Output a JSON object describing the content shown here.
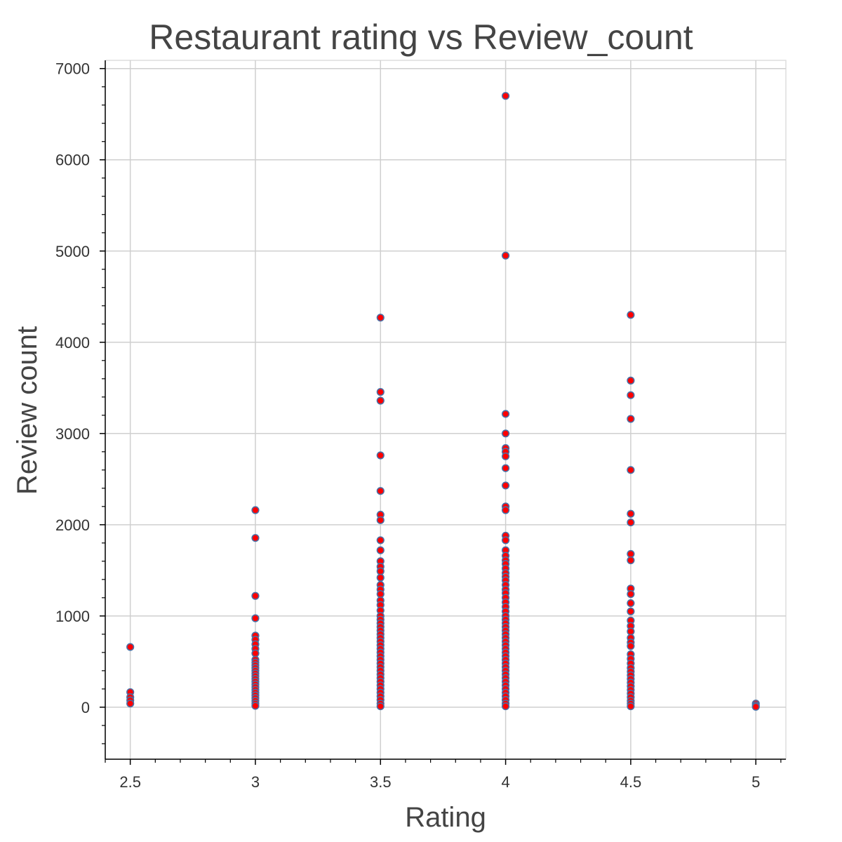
{
  "chart_data": {
    "type": "scatter",
    "title": "Restaurant rating vs Review_count",
    "xlabel": "Rating",
    "ylabel": "Review count",
    "xlim": [
      2.4,
      5.12
    ],
    "ylim": [
      -570,
      7090
    ],
    "xticks": [
      2.5,
      3,
      3.5,
      4,
      4.5,
      5
    ],
    "xtick_labels": [
      "2.5",
      "3",
      "3.5",
      "4",
      "4.5",
      "5"
    ],
    "yticks": [
      0,
      1000,
      2000,
      3000,
      4000,
      5000,
      6000,
      7000
    ],
    "ytick_labels": [
      "0",
      "1000",
      "2000",
      "3000",
      "4000",
      "5000",
      "6000",
      "7000"
    ],
    "grid": true,
    "marker_fill": "#ff0000",
    "marker_line": "#4a6fa5",
    "series": [
      {
        "points": [
          [
            2.5,
            660
          ],
          [
            2.5,
            165
          ],
          [
            2.5,
            110
          ],
          [
            2.5,
            75
          ],
          [
            2.5,
            40
          ],
          [
            3,
            2160
          ],
          [
            3,
            1855
          ],
          [
            3,
            1220
          ],
          [
            3,
            975
          ],
          [
            3,
            785
          ],
          [
            3,
            740
          ],
          [
            3,
            690
          ],
          [
            3,
            640
          ],
          [
            3,
            590
          ],
          [
            3,
            520
          ],
          [
            3,
            490
          ],
          [
            3,
            460
          ],
          [
            3,
            430
          ],
          [
            3,
            400
          ],
          [
            3,
            370
          ],
          [
            3,
            340
          ],
          [
            3,
            310
          ],
          [
            3,
            280
          ],
          [
            3,
            250
          ],
          [
            3,
            220
          ],
          [
            3,
            190
          ],
          [
            3,
            160
          ],
          [
            3,
            130
          ],
          [
            3,
            100
          ],
          [
            3,
            70
          ],
          [
            3,
            40
          ],
          [
            3,
            15
          ],
          [
            3.5,
            4270
          ],
          [
            3.5,
            3455
          ],
          [
            3.5,
            3360
          ],
          [
            3.5,
            2760
          ],
          [
            3.5,
            2370
          ],
          [
            3.5,
            2110
          ],
          [
            3.5,
            2050
          ],
          [
            3.5,
            1830
          ],
          [
            3.5,
            1720
          ],
          [
            3.5,
            1600
          ],
          [
            3.5,
            1540
          ],
          [
            3.5,
            1490
          ],
          [
            3.5,
            1420
          ],
          [
            3.5,
            1340
          ],
          [
            3.5,
            1290
          ],
          [
            3.5,
            1240
          ],
          [
            3.5,
            1170
          ],
          [
            3.5,
            1120
          ],
          [
            3.5,
            1060
          ],
          [
            3.5,
            1000
          ],
          [
            3.5,
            960
          ],
          [
            3.5,
            920
          ],
          [
            3.5,
            880
          ],
          [
            3.5,
            840
          ],
          [
            3.5,
            800
          ],
          [
            3.5,
            760
          ],
          [
            3.5,
            720
          ],
          [
            3.5,
            680
          ],
          [
            3.5,
            640
          ],
          [
            3.5,
            600
          ],
          [
            3.5,
            560
          ],
          [
            3.5,
            520
          ],
          [
            3.5,
            480
          ],
          [
            3.5,
            440
          ],
          [
            3.5,
            400
          ],
          [
            3.5,
            360
          ],
          [
            3.5,
            320
          ],
          [
            3.5,
            280
          ],
          [
            3.5,
            240
          ],
          [
            3.5,
            200
          ],
          [
            3.5,
            160
          ],
          [
            3.5,
            120
          ],
          [
            3.5,
            80
          ],
          [
            3.5,
            40
          ],
          [
            3.5,
            10
          ],
          [
            4,
            6700
          ],
          [
            4,
            4950
          ],
          [
            4,
            3215
          ],
          [
            4,
            3000
          ],
          [
            4,
            2840
          ],
          [
            4,
            2800
          ],
          [
            4,
            2750
          ],
          [
            4,
            2620
          ],
          [
            4,
            2430
          ],
          [
            4,
            2200
          ],
          [
            4,
            2160
          ],
          [
            4,
            1880
          ],
          [
            4,
            1830
          ],
          [
            4,
            1720
          ],
          [
            4,
            1660
          ],
          [
            4,
            1610
          ],
          [
            4,
            1570
          ],
          [
            4,
            1520
          ],
          [
            4,
            1470
          ],
          [
            4,
            1430
          ],
          [
            4,
            1390
          ],
          [
            4,
            1340
          ],
          [
            4,
            1290
          ],
          [
            4,
            1250
          ],
          [
            4,
            1200
          ],
          [
            4,
            1150
          ],
          [
            4,
            1100
          ],
          [
            4,
            1050
          ],
          [
            4,
            1000
          ],
          [
            4,
            960
          ],
          [
            4,
            920
          ],
          [
            4,
            880
          ],
          [
            4,
            840
          ],
          [
            4,
            800
          ],
          [
            4,
            760
          ],
          [
            4,
            720
          ],
          [
            4,
            680
          ],
          [
            4,
            640
          ],
          [
            4,
            600
          ],
          [
            4,
            560
          ],
          [
            4,
            520
          ],
          [
            4,
            480
          ],
          [
            4,
            440
          ],
          [
            4,
            400
          ],
          [
            4,
            360
          ],
          [
            4,
            320
          ],
          [
            4,
            280
          ],
          [
            4,
            240
          ],
          [
            4,
            200
          ],
          [
            4,
            160
          ],
          [
            4,
            120
          ],
          [
            4,
            80
          ],
          [
            4,
            40
          ],
          [
            4,
            10
          ],
          [
            4.5,
            4300
          ],
          [
            4.5,
            3580
          ],
          [
            4.5,
            3420
          ],
          [
            4.5,
            3160
          ],
          [
            4.5,
            2600
          ],
          [
            4.5,
            2120
          ],
          [
            4.5,
            2025
          ],
          [
            4.5,
            1680
          ],
          [
            4.5,
            1610
          ],
          [
            4.5,
            1300
          ],
          [
            4.5,
            1240
          ],
          [
            4.5,
            1140
          ],
          [
            4.5,
            1050
          ],
          [
            4.5,
            950
          ],
          [
            4.5,
            890
          ],
          [
            4.5,
            830
          ],
          [
            4.5,
            760
          ],
          [
            4.5,
            710
          ],
          [
            4.5,
            670
          ],
          [
            4.5,
            580
          ],
          [
            4.5,
            530
          ],
          [
            4.5,
            480
          ],
          [
            4.5,
            430
          ],
          [
            4.5,
            390
          ],
          [
            4.5,
            350
          ],
          [
            4.5,
            310
          ],
          [
            4.5,
            270
          ],
          [
            4.5,
            230
          ],
          [
            4.5,
            190
          ],
          [
            4.5,
            150
          ],
          [
            4.5,
            110
          ],
          [
            4.5,
            70
          ],
          [
            4.5,
            40
          ],
          [
            4.5,
            10
          ],
          [
            5,
            40
          ],
          [
            5,
            20
          ],
          [
            5,
            5
          ]
        ]
      }
    ]
  }
}
